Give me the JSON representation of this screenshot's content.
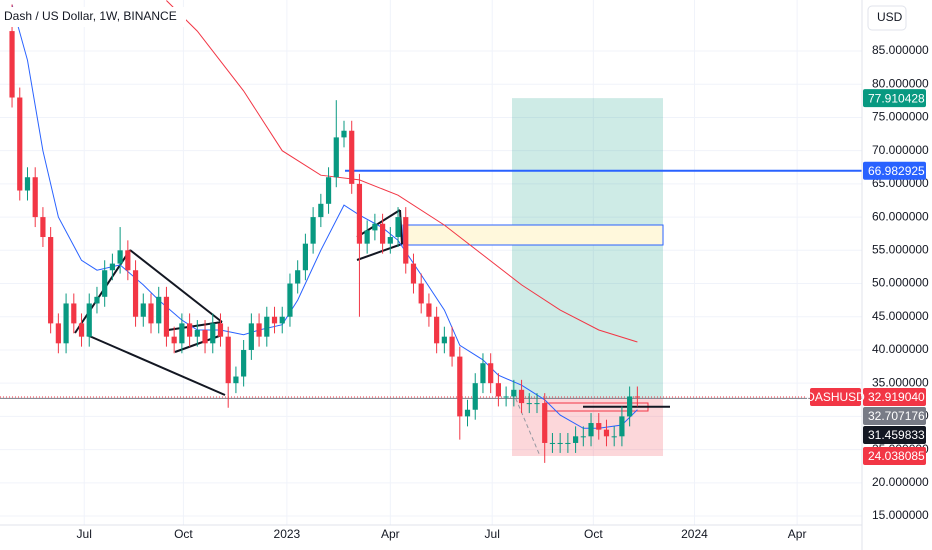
{
  "header": {
    "title": "Dash / US Dollar, 1W, BINANCE",
    "currency": "USD"
  },
  "chart_data": {
    "type": "candlestick",
    "up_color": "#089981",
    "down_color": "#f23645",
    "grid": true,
    "x": [
      0,
      1,
      2,
      3,
      4,
      5,
      6,
      7,
      8,
      9,
      10,
      11,
      12,
      13,
      14,
      15,
      16,
      17,
      18,
      19,
      20,
      21,
      22,
      23,
      24,
      25,
      26,
      27,
      28,
      29,
      30,
      31,
      32,
      33,
      34,
      35,
      36,
      37,
      38,
      39,
      40,
      41,
      42,
      43,
      44,
      45,
      46,
      47,
      48,
      49,
      50,
      51,
      52,
      53,
      54,
      55,
      56,
      57,
      58,
      59,
      60,
      61,
      62,
      63,
      64,
      65,
      66,
      67,
      68,
      69,
      70,
      71,
      72,
      73,
      74,
      75,
      76,
      77,
      78,
      79,
      80,
      81
    ],
    "open": [
      88,
      78,
      64,
      66,
      60,
      57,
      44,
      41,
      47,
      44,
      42,
      47,
      48,
      52,
      53,
      55,
      52,
      45,
      47,
      44,
      48,
      42,
      41,
      44,
      42,
      43,
      41,
      44,
      42,
      35,
      36,
      40,
      44,
      42,
      45,
      44,
      45,
      50,
      52,
      56,
      60,
      62,
      66,
      72,
      73,
      65,
      56,
      58,
      59,
      56,
      57,
      60,
      53,
      50,
      47,
      45,
      41,
      42,
      39,
      30,
      31,
      35,
      38,
      35,
      33,
      33,
      34,
      32,
      32,
      32,
      26,
      26,
      26,
      26,
      27,
      27,
      29,
      28,
      27,
      27,
      30,
      33
    ],
    "high": [
      92,
      79.5,
      67.5,
      67.5,
      61.5,
      58.5,
      45.5,
      48.5,
      48.5,
      45.5,
      48.5,
      49.5,
      53.5,
      54.5,
      58.5,
      56.5,
      53.5,
      48.5,
      48.5,
      49.5,
      49.5,
      43.5,
      45.5,
      45.5,
      44.5,
      44.5,
      45.5,
      45.5,
      43.5,
      37.5,
      41.5,
      45.5,
      45.5,
      46.5,
      46.5,
      46.5,
      51.5,
      53.5,
      57.5,
      61.5,
      63.5,
      67.5,
      77.6,
      74.5,
      74.5,
      66.5,
      59.5,
      60.5,
      60.5,
      58.5,
      61.5,
      61.5,
      54.5,
      51.5,
      48.5,
      46.5,
      43.5,
      43.5,
      40.5,
      32.5,
      36.5,
      39.5,
      39.5,
      36.5,
      34.5,
      35.5,
      35.5,
      33.5,
      33.5,
      33.5,
      27.5,
      27.5,
      27.5,
      28.5,
      28.5,
      30.5,
      30.5,
      29.5,
      28.5,
      31.5,
      34.5,
      34.5
    ],
    "low": [
      76.5,
      62.5,
      62.5,
      58.5,
      55.5,
      42.5,
      39.5,
      39.5,
      42.5,
      40.5,
      40.5,
      45.5,
      46.5,
      50.5,
      51.5,
      50.5,
      43.5,
      43.5,
      42.5,
      42.5,
      40.5,
      39.5,
      39.5,
      40.5,
      40.5,
      39.5,
      39.5,
      40.5,
      31.3,
      33.5,
      34.5,
      38.5,
      40.5,
      40.5,
      42.5,
      42.5,
      43.5,
      48.5,
      50.5,
      54.5,
      58.5,
      60.5,
      64.5,
      70.5,
      63.5,
      45,
      54.5,
      56.5,
      54.5,
      54.5,
      55.5,
      51.5,
      48.5,
      45.5,
      43.5,
      39.5,
      39.5,
      37.5,
      26.5,
      28.5,
      29.5,
      33.5,
      33.5,
      31.5,
      31.5,
      31.5,
      30.5,
      30.5,
      30.5,
      23,
      24.5,
      24.5,
      24.5,
      24.5,
      25.5,
      25.5,
      26.5,
      25.5,
      25.5,
      25.5,
      28.5,
      31.5
    ],
    "close": [
      78,
      64,
      66,
      60,
      57,
      44,
      41,
      47,
      44,
      42,
      47,
      48,
      52,
      53,
      55,
      52,
      45,
      47,
      44,
      48,
      42,
      41,
      44,
      42,
      43,
      41,
      44,
      42,
      35,
      36,
      40,
      44,
      42,
      45,
      44,
      45,
      50,
      52,
      56,
      60,
      62,
      66,
      72,
      73,
      65,
      56,
      58,
      59,
      56,
      57,
      60,
      53,
      50,
      47,
      45,
      41,
      42,
      39,
      30,
      31,
      35,
      38,
      35,
      33,
      33,
      34,
      32,
      32,
      32,
      26,
      26,
      26,
      26,
      27,
      27,
      29,
      28,
      27,
      27,
      30,
      33,
      32.92
    ],
    "lines": [
      {
        "color": "#2962ff",
        "x": [
          0,
          2,
          4,
          6,
          9,
          11,
          14,
          17,
          19,
          22,
          24,
          27,
          30,
          32,
          35,
          37,
          40,
          43,
          45,
          48,
          50,
          53,
          56,
          58,
          61,
          63,
          66,
          69,
          71,
          74,
          76,
          79,
          81
        ],
        "values": [
          92,
          83.6,
          70,
          60,
          53.5,
          52,
          52.8,
          49.8,
          47.5,
          44.5,
          43,
          43,
          42.3,
          43,
          43.8,
          47.5,
          55,
          61.8,
          60.3,
          58.4,
          56.5,
          51.3,
          46,
          40.7,
          38.5,
          36.2,
          34.7,
          32.5,
          30.2,
          28.2,
          28.2,
          28.7,
          31
        ]
      },
      {
        "color": "#f23645",
        "x": [
          20,
          24,
          30,
          35,
          40,
          45,
          50,
          56,
          61,
          66,
          71,
          76,
          81
        ],
        "values": [
          92.6,
          88,
          79,
          70,
          66.3,
          65.6,
          63.3,
          58.8,
          54.3,
          49.8,
          46,
          43,
          41.2
        ]
      }
    ],
    "xlim": [
      -1.56,
      110.1
    ],
    "xticks": [
      {
        "value": 9.35,
        "label": "Jul"
      },
      {
        "value": 22.2,
        "label": "Oct"
      },
      {
        "value": 35.6,
        "label": "2023"
      },
      {
        "value": 49,
        "label": "Apr"
      },
      {
        "value": 62.2,
        "label": "Jul"
      },
      {
        "value": 75.3,
        "label": "Oct"
      },
      {
        "value": 88.4,
        "label": "2024"
      },
      {
        "value": 101.7,
        "label": "Apr"
      }
    ],
    "ylim": [
      13.65,
      92.68
    ],
    "yticks": [
      {
        "value": 15,
        "label": "15.000000"
      },
      {
        "value": 20,
        "label": "20.000000"
      },
      {
        "value": 25,
        "label": "25.000000"
      },
      {
        "value": 30,
        "label": "30.000000"
      },
      {
        "value": 35,
        "label": "35.000000"
      },
      {
        "value": 40,
        "label": "40.000000"
      },
      {
        "value": 45,
        "label": "45.000000"
      },
      {
        "value": 50,
        "label": "50.000000"
      },
      {
        "value": 55,
        "label": "55.000000"
      },
      {
        "value": 60,
        "label": "60.000000"
      },
      {
        "value": 65,
        "label": "65.000000"
      },
      {
        "value": 70,
        "label": "70.000000"
      },
      {
        "value": 75,
        "label": "75.000000"
      },
      {
        "value": 80,
        "label": "80.000000"
      },
      {
        "value": 85,
        "label": "85.000000"
      }
    ],
    "levels": [
      {
        "value": 77.910428,
        "color": "#089981",
        "line": "none"
      },
      {
        "value": 66.982925,
        "color": "#2962ff",
        "line": "blue"
      },
      {
        "name": "DASHUSD",
        "value": {
          "value": 32.91904,
          "label": "32.919040"
        },
        "color": "#f23645",
        "line": "dotted"
      },
      {
        "value": 32.707176,
        "color": "#787b86",
        "line": "full"
      },
      {
        "value": 31.459833,
        "color": "#131722",
        "line": "short"
      },
      {
        "value": 24.038085,
        "color": "#f23645",
        "line": "none"
      }
    ]
  }
}
